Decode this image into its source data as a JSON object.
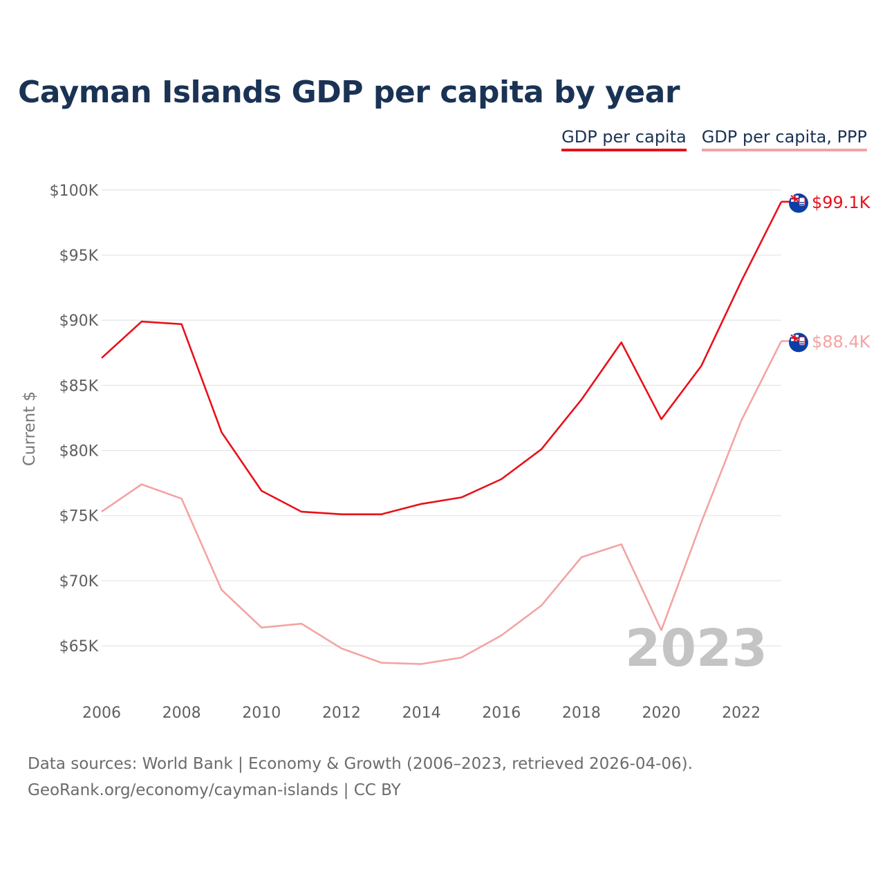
{
  "title": "Cayman Islands GDP per capita by year",
  "legend": [
    {
      "label": "GDP per capita",
      "color": "#e8101a"
    },
    {
      "label": "GDP per capita, PPP",
      "color": "#f4a3a3"
    }
  ],
  "chart_data": {
    "type": "line",
    "title": "Cayman Islands GDP per capita by year",
    "xlabel": "",
    "ylabel": "Current $",
    "x": [
      2006,
      2007,
      2008,
      2009,
      2010,
      2011,
      2012,
      2013,
      2014,
      2015,
      2016,
      2017,
      2018,
      2019,
      2020,
      2021,
      2022,
      2023
    ],
    "xticks": [
      2006,
      2008,
      2010,
      2012,
      2014,
      2016,
      2018,
      2020,
      2022
    ],
    "xtick_labels": [
      "2006",
      "2008",
      "2010",
      "2012",
      "2014",
      "2016",
      "2018",
      "2020",
      "2022"
    ],
    "yticks": [
      65000,
      70000,
      75000,
      80000,
      85000,
      90000,
      95000,
      100000
    ],
    "ytick_labels": [
      "$65K",
      "$70K",
      "$75K",
      "$80K",
      "$85K",
      "$90K",
      "$95K",
      "$100K"
    ],
    "xlim": [
      2006,
      2023
    ],
    "ylim": [
      61500,
      101000
    ],
    "grid": true,
    "legend_position": "top-right",
    "series": [
      {
        "name": "GDP per capita",
        "color": "#e8101a",
        "values": [
          87100,
          89900,
          89700,
          81400,
          76900,
          75300,
          75100,
          75100,
          75900,
          76400,
          77800,
          80100,
          83900,
          88300,
          82400,
          86500,
          93000,
          99100
        ],
        "end_label": "$99.1K"
      },
      {
        "name": "GDP per capita, PPP",
        "color": "#f4a3a3",
        "values": [
          75300,
          77400,
          76300,
          69300,
          66400,
          66700,
          64800,
          63700,
          63600,
          64100,
          65800,
          68100,
          71800,
          72800,
          66200,
          74500,
          82300,
          88400
        ],
        "end_label": "$88.4K"
      }
    ],
    "annotation": "2023"
  },
  "footer": {
    "line1": "Data sources: World Bank | Economy & Growth (2006–2023, retrieved 2026-04-06).",
    "line2": "GeoRank.org/economy/cayman-islands | CC BY"
  }
}
